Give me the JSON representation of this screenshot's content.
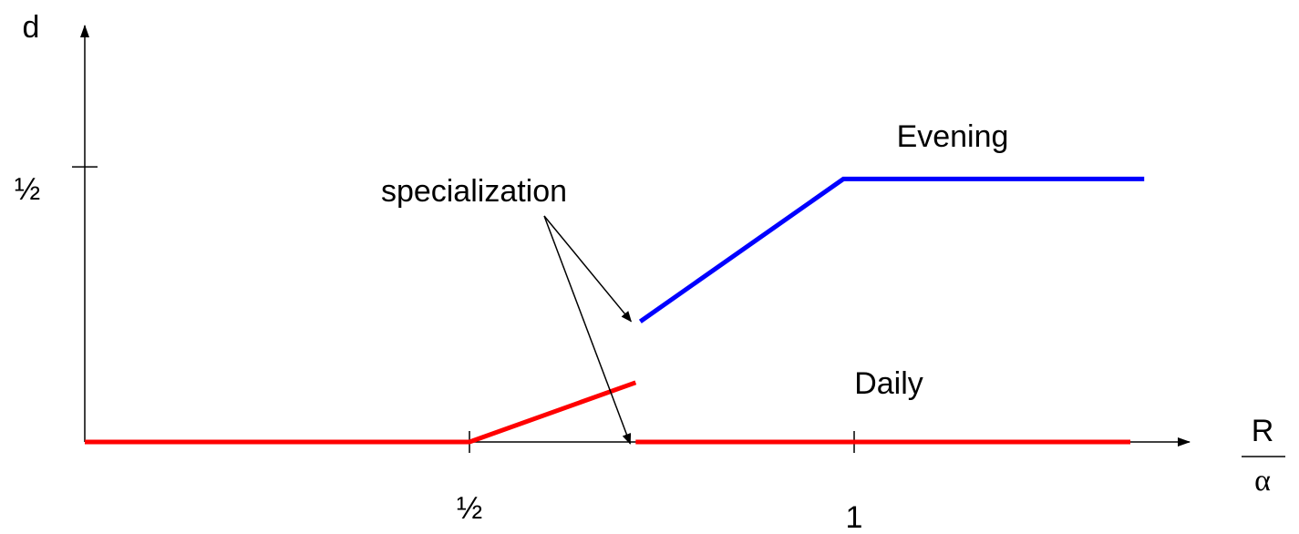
{
  "chart_data": {
    "type": "line",
    "ylabel": "d",
    "xlabel_numerator": "R",
    "xlabel_denominator": "α",
    "annotation": "specialization",
    "xlim": [
      0,
      1.436
    ],
    "ylim": [
      0,
      0.757
    ],
    "xticks": [
      {
        "value": 0.5,
        "label": "½"
      },
      1
    ],
    "yticks": [
      {
        "value": 0.5,
        "label": "½"
      }
    ],
    "series": [
      {
        "name": "Daily",
        "color": "#ff0000",
        "x": [
          0,
          0.5,
          0.716,
          0.716,
          0.716,
          1.359
        ],
        "values": [
          0,
          0,
          0.108,
          null,
          0,
          0
        ]
      },
      {
        "name": "Evening",
        "color": "#0000ff",
        "x": [
          0.722,
          0.986,
          1.377
        ],
        "values": [
          0.219,
          0.478,
          0.478
        ]
      }
    ]
  }
}
